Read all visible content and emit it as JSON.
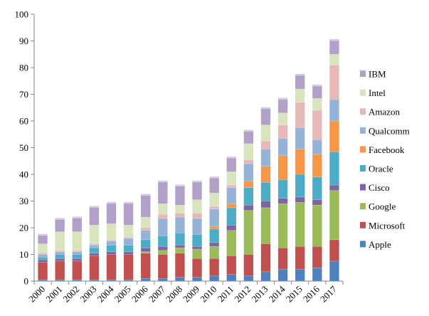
{
  "chart_data": {
    "type": "bar",
    "stacked": true,
    "title": "",
    "xlabel": "",
    "ylabel": "",
    "ylim": [
      0,
      100
    ],
    "yticks": [
      0,
      10,
      20,
      30,
      40,
      50,
      60,
      70,
      80,
      90,
      100
    ],
    "grid": false,
    "legend_position": "right",
    "categories": [
      "2000",
      "2001",
      "2002",
      "2003",
      "2004",
      "2005",
      "2006",
      "2007",
      "2008",
      "2009",
      "2010",
      "2011",
      "2012",
      "2013",
      "2014",
      "2015",
      "2016",
      "2017"
    ],
    "series": [
      {
        "name": "Apple",
        "color": "#4f81bd",
        "values": [
          0.5,
          0.5,
          0.5,
          0.5,
          0.5,
          0.5,
          1,
          1,
          1.5,
          1.5,
          2,
          2.5,
          2,
          3.5,
          4.5,
          4.5,
          5,
          7.5
        ]
      },
      {
        "name": "Microsoft",
        "color": "#c0504d",
        "values": [
          6.5,
          7,
          7,
          9,
          9.5,
          9.5,
          9.5,
          9,
          9,
          7,
          6.5,
          7,
          8,
          10.5,
          8,
          8.5,
          8,
          8
        ]
      },
      {
        "name": "Google",
        "color": "#9bbb59",
        "values": [
          0,
          0,
          0,
          0,
          0,
          0,
          0.5,
          1.5,
          2,
          3.5,
          4.5,
          9.5,
          16.5,
          13.5,
          16.5,
          16.5,
          15.5,
          18.5
        ]
      },
      {
        "name": "Cisco",
        "color": "#8064a2",
        "values": [
          1,
          1,
          1,
          1,
          1,
          1,
          1.5,
          1.5,
          1,
          1,
          1.5,
          2,
          2,
          2.5,
          2,
          2,
          2,
          2
        ]
      },
      {
        "name": "Oracle",
        "color": "#4bacc6",
        "values": [
          1,
          1.5,
          1.5,
          2,
          2.5,
          2.5,
          3,
          4,
          4.5,
          4.5,
          5,
          6.5,
          6.5,
          7,
          7,
          8.5,
          8.5,
          12.5
        ]
      },
      {
        "name": "Facebook",
        "color": "#f79646",
        "values": [
          0,
          0,
          0,
          0,
          0,
          0,
          0,
          0,
          0,
          0,
          1,
          1.5,
          2.5,
          6,
          9,
          9.5,
          8.5,
          11.5
        ]
      },
      {
        "name": "Qualcomm",
        "color": "#95b3d7",
        "values": [
          1,
          1,
          1,
          1,
          1.5,
          2.5,
          3.5,
          6.5,
          6,
          6,
          6.5,
          6,
          6.5,
          6.5,
          6.5,
          8,
          5.5,
          8
        ]
      },
      {
        "name": "Amazon",
        "color": "#e6b9b8",
        "values": [
          0.5,
          0.5,
          0.5,
          0.5,
          0.5,
          0.5,
          1,
          1.5,
          1.5,
          2,
          1,
          1,
          1.5,
          3,
          5,
          9.5,
          11,
          13
        ]
      },
      {
        "name": "Intel",
        "color": "#d7e4bc",
        "values": [
          3.5,
          7,
          7,
          7,
          6,
          4.5,
          4,
          4,
          3,
          5,
          5,
          5,
          6,
          6,
          4.5,
          5,
          4.5,
          4
        ]
      },
      {
        "name": "IBM",
        "color": "#b1a0c7",
        "values": [
          3,
          4.5,
          5,
          6.5,
          7.5,
          8,
          8,
          8,
          7,
          6.5,
          5.5,
          5,
          4.5,
          6,
          5,
          5,
          4.5,
          5
        ]
      }
    ]
  }
}
